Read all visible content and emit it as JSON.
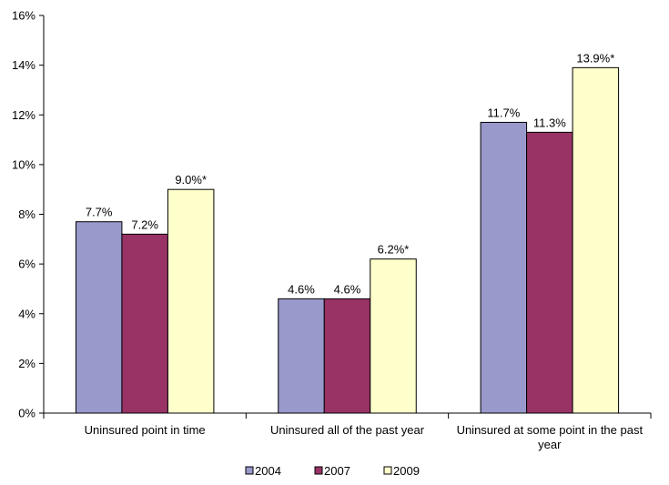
{
  "chart_data": {
    "type": "bar",
    "categories": [
      [
        "Uninsured point in time"
      ],
      [
        "Uninsured all of the past year"
      ],
      [
        "Uninsured at some point in the past",
        "year"
      ]
    ],
    "series": [
      {
        "name": "2004",
        "color": "#9999cc",
        "values": [
          7.7,
          4.6,
          11.7
        ],
        "labels": [
          "7.7%",
          "4.6%",
          "11.7%"
        ]
      },
      {
        "name": "2007",
        "color": "#993366",
        "values": [
          7.2,
          4.6,
          11.3
        ],
        "labels": [
          "7.2%",
          "4.6%",
          "11.3%"
        ]
      },
      {
        "name": "2009",
        "color": "#ffffcc",
        "values": [
          9.0,
          6.2,
          13.9
        ],
        "labels": [
          "9.0%*",
          "6.2%*",
          "13.9%*"
        ]
      }
    ],
    "ylim": [
      0,
      16
    ],
    "yticks": [
      0,
      2,
      4,
      6,
      8,
      10,
      12,
      14,
      16
    ],
    "ytick_labels": [
      "0%",
      "2%",
      "4%",
      "6%",
      "8%",
      "10%",
      "12%",
      "14%",
      "16%"
    ],
    "title": "",
    "xlabel": "",
    "ylabel": "",
    "grid": false,
    "legend": "bottom"
  }
}
